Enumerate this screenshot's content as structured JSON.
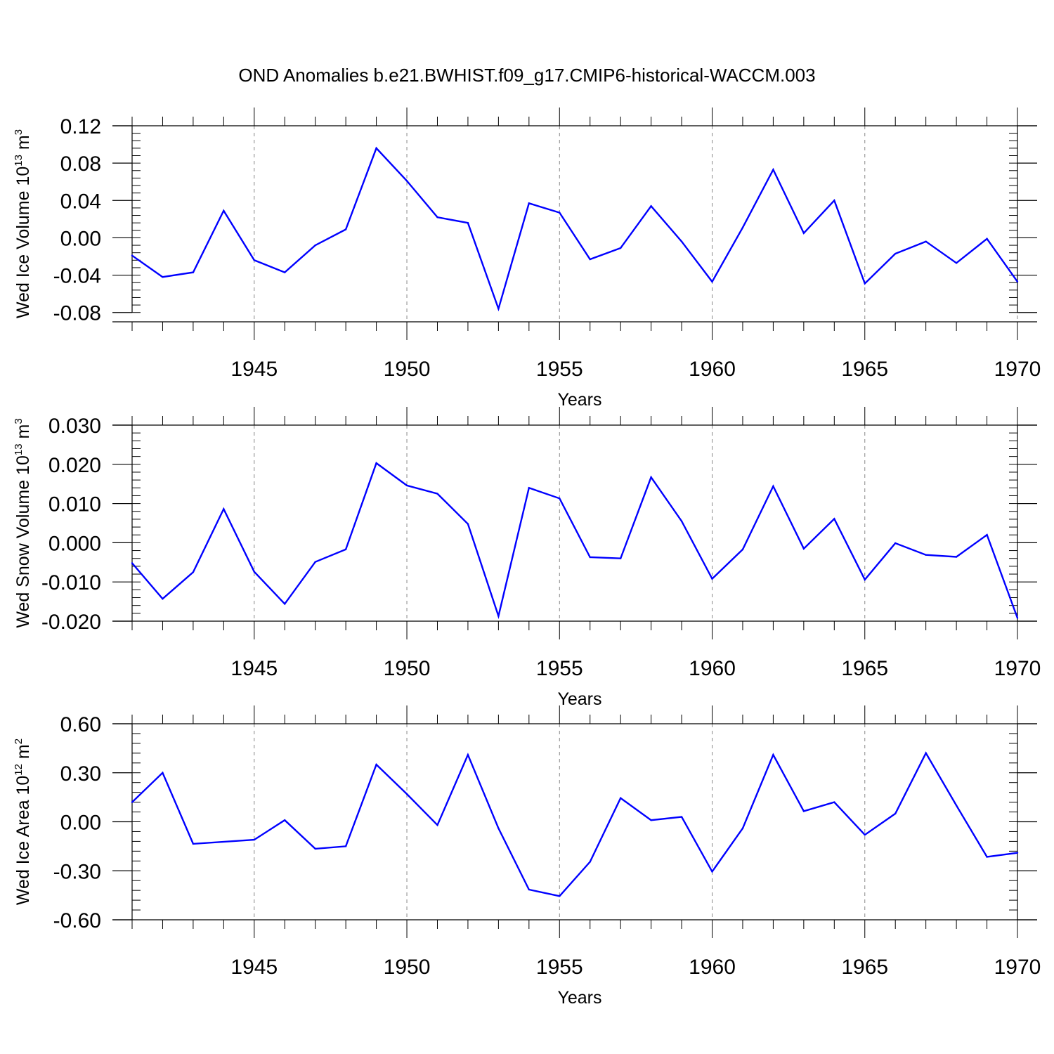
{
  "figure": {
    "title": "OND Anomalies b.e21.BWHIST.f09_g17.CMIP6-historical-WACCM.003",
    "line_color": "#0000ff",
    "grid_color": "#888888"
  },
  "chart_data": [
    {
      "type": "line",
      "title": "",
      "ylabel": {
        "base": "Wed Ice Volume 10",
        "exp": "13",
        "unit": " m",
        "unit_exp": "3"
      },
      "xlabel": "Years",
      "xlim": [
        1941,
        1970
      ],
      "ylim": [
        -0.09,
        0.12
      ],
      "yticks": [
        -0.08,
        -0.04,
        0.0,
        0.04,
        0.08,
        0.12
      ],
      "ytick_labels": [
        "-0.08",
        "-0.04",
        "0.00",
        "0.04",
        "0.08",
        "0.12"
      ],
      "yminor_step": 0.008,
      "xticks": [
        1945,
        1950,
        1955,
        1960,
        1965,
        1970
      ],
      "xtick_labels": [
        "1945",
        "1950",
        "1955",
        "1960",
        "1965",
        "1970"
      ],
      "grid": "vertical-dashed-major",
      "series": [
        {
          "x": [
            1941,
            1942,
            1943,
            1944,
            1945,
            1946,
            1947,
            1948,
            1949,
            1950,
            1951,
            1952,
            1953,
            1954,
            1955,
            1956,
            1957,
            1958,
            1959,
            1960,
            1961,
            1962,
            1963,
            1964,
            1965,
            1966,
            1967,
            1968,
            1969,
            1970
          ],
          "values": [
            -0.019,
            -0.042,
            -0.037,
            0.029,
            -0.024,
            -0.037,
            -0.008,
            0.009,
            0.096,
            0.061,
            0.022,
            0.016,
            -0.076,
            0.037,
            0.027,
            -0.023,
            -0.011,
            0.034,
            -0.004,
            -0.047,
            0.011,
            0.073,
            0.005,
            0.04,
            -0.049,
            -0.017,
            -0.004,
            -0.027,
            -0.001,
            -0.047
          ]
        }
      ]
    },
    {
      "type": "line",
      "title": "",
      "ylabel": {
        "base": "Wed Snow Volume 10",
        "exp": "13",
        "unit": " m",
        "unit_exp": "3"
      },
      "xlabel": "Years",
      "xlim": [
        1941,
        1970
      ],
      "ylim": [
        -0.02,
        0.03
      ],
      "yticks": [
        -0.02,
        -0.01,
        0.0,
        0.01,
        0.02,
        0.03
      ],
      "ytick_labels": [
        "-0.020",
        "-0.010",
        "0.000",
        "0.010",
        "0.020",
        "0.030"
      ],
      "yminor_step": 0.002,
      "xticks": [
        1945,
        1950,
        1955,
        1960,
        1965,
        1970
      ],
      "xtick_labels": [
        "1945",
        "1950",
        "1955",
        "1960",
        "1965",
        "1970"
      ],
      "grid": "vertical-dashed-major",
      "series": [
        {
          "x": [
            1941,
            1942,
            1943,
            1944,
            1945,
            1946,
            1947,
            1948,
            1949,
            1950,
            1951,
            1952,
            1953,
            1954,
            1955,
            1956,
            1957,
            1958,
            1959,
            1960,
            1961,
            1962,
            1963,
            1964,
            1965,
            1966,
            1967,
            1968,
            1969,
            1970
          ],
          "values": [
            -0.0052,
            -0.0143,
            -0.0075,
            0.0086,
            -0.0074,
            -0.0156,
            -0.0049,
            -0.0017,
            0.0203,
            0.0146,
            0.0125,
            0.0048,
            -0.0187,
            0.014,
            0.0113,
            -0.0037,
            -0.004,
            0.0167,
            0.0055,
            -0.0092,
            -0.0017,
            0.0144,
            -0.0015,
            0.0061,
            -0.0094,
            -0.0001,
            -0.0031,
            -0.0036,
            0.002,
            -0.0192
          ]
        }
      ]
    },
    {
      "type": "line",
      "title": "",
      "ylabel": {
        "base": "Wed Ice Area 10",
        "exp": "12",
        "unit": " m",
        "unit_exp": "2"
      },
      "xlabel": "Years",
      "xlim": [
        1941,
        1970
      ],
      "ylim": [
        -0.6,
        0.6
      ],
      "yticks": [
        -0.6,
        -0.3,
        0.0,
        0.3,
        0.6
      ],
      "ytick_labels": [
        "-0.60",
        "-0.30",
        "0.00",
        "0.30",
        "0.60"
      ],
      "yminor_step": 0.06,
      "xticks": [
        1945,
        1950,
        1955,
        1960,
        1965,
        1970
      ],
      "xtick_labels": [
        "1945",
        "1950",
        "1955",
        "1960",
        "1965",
        "1970"
      ],
      "grid": "vertical-dashed-major",
      "series": [
        {
          "x": [
            1941,
            1942,
            1943,
            1945,
            1946,
            1947,
            1948,
            1949,
            1950,
            1951,
            1952,
            1953,
            1954,
            1955,
            1956,
            1957,
            1958,
            1959,
            1960,
            1961,
            1962,
            1963,
            1964,
            1965,
            1966,
            1967,
            1968,
            1969,
            1970
          ],
          "values": [
            0.12,
            0.3,
            -0.135,
            -0.11,
            0.01,
            -0.165,
            -0.15,
            0.35,
            0.17,
            -0.02,
            0.41,
            -0.04,
            -0.415,
            -0.455,
            -0.245,
            0.145,
            0.01,
            0.03,
            -0.305,
            -0.04,
            0.41,
            0.065,
            0.12,
            -0.08,
            0.05,
            0.42,
            0.1,
            -0.215,
            -0.19
          ]
        }
      ]
    }
  ]
}
